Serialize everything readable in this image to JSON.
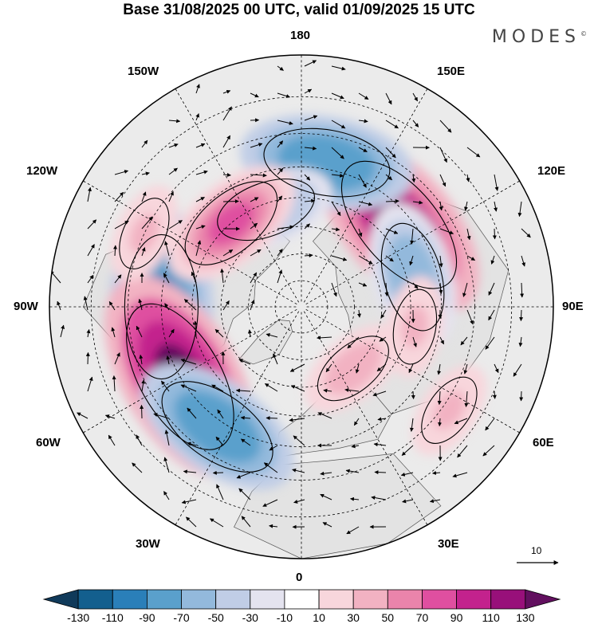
{
  "header": {
    "title": "Base 31/08/2025 00 UTC, valid 01/09/2025 15 UTC",
    "brand": "MODES",
    "brand_mark": "©"
  },
  "map": {
    "projection": "north-polar-stereographic",
    "longitude_labels": {
      "top": "180",
      "bottom": "0",
      "left": "90W",
      "right": "90E",
      "upper_left_150": "150W",
      "upper_right_150": "150E",
      "left_120": "120W",
      "right_120": "120E",
      "left_60": "60W",
      "right_60": "60E",
      "lower_left_30": "30W",
      "lower_right_30": "30E"
    },
    "reference_vector": {
      "label": "10",
      "value": 10
    },
    "anomalies": [
      {
        "lon": -90,
        "lat": 40,
        "value": -110
      },
      {
        "lon": -60,
        "lat": 40,
        "value": 130
      },
      {
        "lon": -35,
        "lat": 38,
        "value": -90
      },
      {
        "lon": 130,
        "lat": 44,
        "value": 120
      },
      {
        "lon": 105,
        "lat": 48,
        "value": -70
      },
      {
        "lon": 170,
        "lat": 38,
        "value": -90
      },
      {
        "lon": -160,
        "lat": 52,
        "value": -60
      },
      {
        "lon": -140,
        "lat": 50,
        "value": 70
      },
      {
        "lon": -115,
        "lat": 30,
        "value": 30
      },
      {
        "lon": 55,
        "lat": 28,
        "value": 30
      },
      {
        "lon": 80,
        "lat": 48,
        "value": 30
      },
      {
        "lon": 40,
        "lat": 60,
        "value": 40
      }
    ]
  },
  "colorbar": {
    "labels": [
      "-130",
      "-110",
      "-90",
      "-70",
      "-50",
      "-30",
      "-10",
      "10",
      "30",
      "50",
      "70",
      "90",
      "110",
      "130"
    ],
    "colors": [
      "#103a5a",
      "#135f8e",
      "#2a7fb9",
      "#5aa0cc",
      "#93b9dc",
      "#c0cde6",
      "#e4e3ef",
      "#ffffff",
      "#f8d6dc",
      "#f2b2c2",
      "#ea84ab",
      "#df4fa0",
      "#c3228d",
      "#98107a",
      "#62105f"
    ]
  }
}
